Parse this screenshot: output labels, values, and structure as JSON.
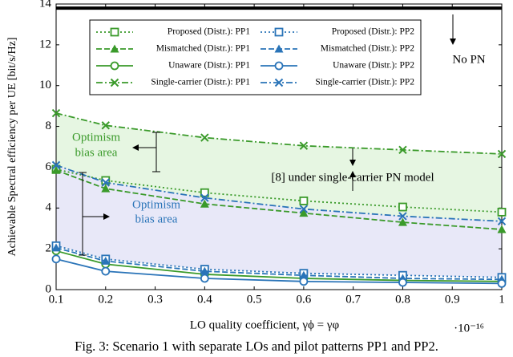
{
  "chart_data": {
    "type": "line",
    "caption": "Fig. 3: Scenario 1 with separate LOs and pilot patterns PP1 and PP2.",
    "xlabel": "LO quality coefficient, γϕ = γφ",
    "ylabel": "Achievable Spectral efficiency per UE [bit/s/Hz]",
    "x_exponent": "·10⁻¹⁶",
    "x": [
      0.1,
      0.2,
      0.4,
      0.6,
      0.8,
      1
    ],
    "xlim": [
      0.1,
      1
    ],
    "xticks": [
      0.1,
      0.2,
      0.3,
      0.4,
      0.5,
      0.6,
      0.7,
      0.8,
      0.9,
      1
    ],
    "ylim": [
      0,
      14
    ],
    "yticks": [
      0,
      2,
      4,
      6,
      8,
      10,
      12,
      14
    ],
    "series": [
      {
        "name": "Proposed (Distr.): PP1",
        "color": "#3a9a2a",
        "dash": "dotted",
        "marker": "square",
        "values": [
          5.9,
          5.35,
          4.75,
          4.35,
          4.05,
          3.8
        ]
      },
      {
        "name": "Mismatched (Distr.): PP1",
        "color": "#3a9a2a",
        "dash": "dashed",
        "marker": "triangle",
        "values": [
          5.85,
          4.95,
          4.2,
          3.75,
          3.3,
          2.95
        ]
      },
      {
        "name": "Unaware (Distr.): PP1",
        "color": "#3a9a2a",
        "dash": "solid",
        "marker": "circle",
        "values": [
          1.9,
          1.25,
          0.75,
          0.55,
          0.45,
          0.4
        ]
      },
      {
        "name": "Single-carrier (Distr.): PP1",
        "color": "#3a9a2a",
        "dash": "dashdot",
        "marker": "x",
        "values": [
          8.65,
          8.05,
          7.45,
          7.05,
          6.85,
          6.65
        ]
      },
      {
        "name": "Proposed (Distr.): PP2",
        "color": "#2a74b8",
        "dash": "dotted",
        "marker": "square",
        "values": [
          2.15,
          1.5,
          1.0,
          0.8,
          0.7,
          0.6
        ]
      },
      {
        "name": "Mismatched (Distr.): PP2",
        "color": "#2a74b8",
        "dash": "dashed",
        "marker": "triangle",
        "values": [
          2.05,
          1.4,
          0.9,
          0.7,
          0.55,
          0.5
        ]
      },
      {
        "name": "Unaware (Distr.): PP2",
        "color": "#2a74b8",
        "dash": "solid",
        "marker": "circle",
        "values": [
          1.5,
          0.9,
          0.55,
          0.4,
          0.35,
          0.3
        ]
      },
      {
        "name": "Single-carrier (Distr.): PP2",
        "color": "#2a74b8",
        "dash": "dashdot",
        "marker": "x",
        "values": [
          6.1,
          5.25,
          4.5,
          3.95,
          3.6,
          3.35
        ]
      }
    ],
    "reference_line": {
      "label": "No PN",
      "value": 13.8
    },
    "annotations": [
      "Optimism",
      "bias area",
      "Optimism",
      "bias area",
      "[8] under single-carrier PN model"
    ]
  }
}
